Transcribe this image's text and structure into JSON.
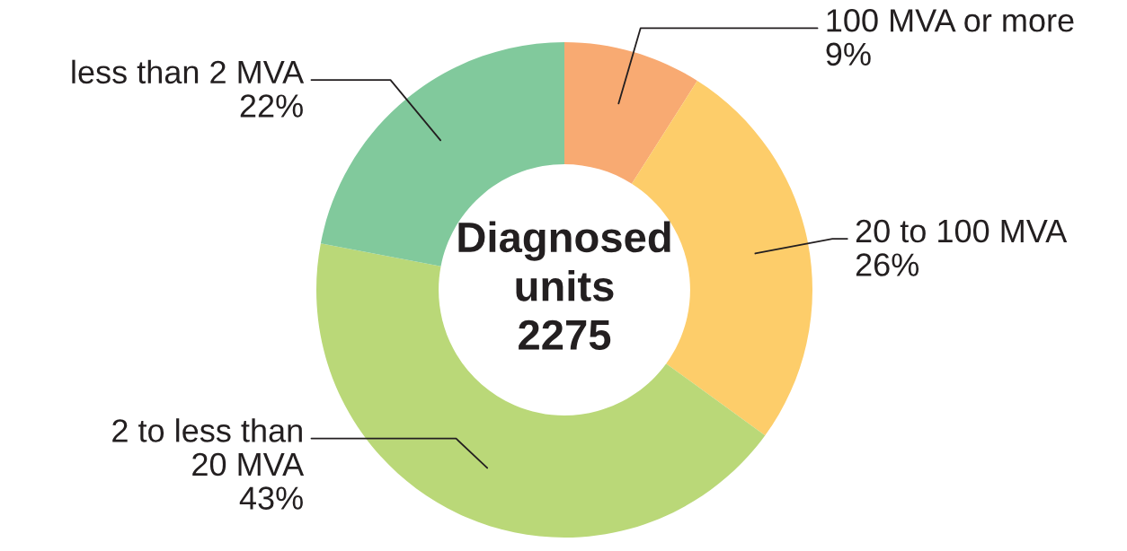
{
  "chart_data": {
    "type": "donut",
    "categories": [
      "100 MVA or more",
      "20 to 100 MVA",
      "2 to less than\n20 MVA",
      "less than 2 MVA"
    ],
    "values": [
      9,
      26,
      43,
      22
    ],
    "value_labels": [
      "9%",
      "26%",
      "43%",
      "22%"
    ],
    "colors": [
      "#f8aa72",
      "#fdcd6a",
      "#bad878",
      "#81c99c"
    ],
    "annotations": [
      "Diagnosed\nunits\n2275"
    ]
  }
}
